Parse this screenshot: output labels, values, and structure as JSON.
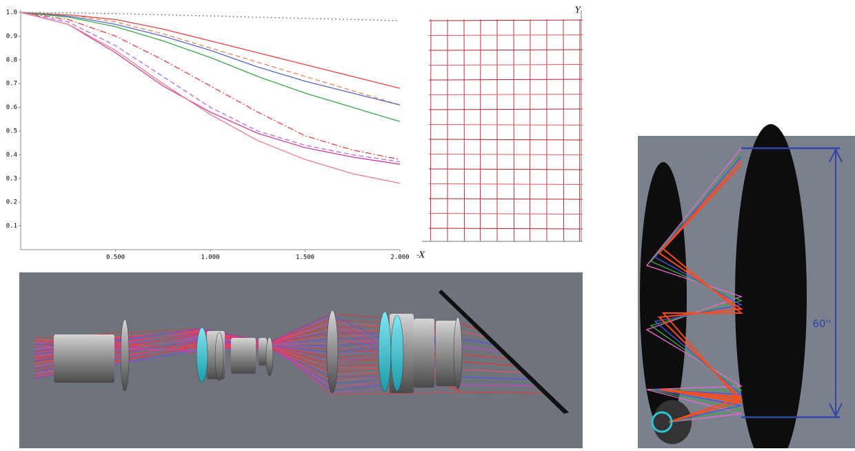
{
  "chart_data": {
    "type": "line",
    "x": [
      0,
      0.25,
      0.5,
      0.75,
      1.0,
      1.25,
      1.5,
      1.75,
      2.0
    ],
    "xlim": [
      0,
      2.0
    ],
    "xticks": [
      {
        "value": 0.5,
        "label": "0.500"
      },
      {
        "value": 1.0,
        "label": "1.000"
      },
      {
        "value": 1.5,
        "label": "1.500"
      },
      {
        "value": 2.0,
        "label": "2.000"
      }
    ],
    "ylim": [
      0,
      1.0
    ],
    "yticks": [
      0.1,
      0.2,
      0.3,
      0.4,
      0.5,
      0.6,
      0.7,
      0.8,
      0.9,
      {
        "value": 1.0,
        "label": "1.0"
      }
    ],
    "grid": false,
    "series": [
      {
        "color": "#555555",
        "dash": "dotted",
        "values": [
          1,
          0.998,
          0.995,
          0.99,
          0.985,
          0.98,
          0.975,
          0.97,
          0.965
        ]
      },
      {
        "color": "#e8433f",
        "dash": "solid",
        "values": [
          1,
          0.99,
          0.97,
          0.93,
          0.88,
          0.83,
          0.78,
          0.73,
          0.68
        ]
      },
      {
        "color": "#e8855a",
        "dash": "dashed",
        "values": [
          1,
          0.99,
          0.96,
          0.91,
          0.85,
          0.79,
          0.73,
          0.67,
          0.61
        ]
      },
      {
        "color": "#5566cc",
        "dash": "solid",
        "values": [
          1,
          0.985,
          0.95,
          0.9,
          0.84,
          0.77,
          0.71,
          0.66,
          0.61
        ]
      },
      {
        "color": "#3aa845",
        "dash": "solid",
        "values": [
          1,
          0.98,
          0.94,
          0.88,
          0.81,
          0.73,
          0.66,
          0.6,
          0.54
        ]
      },
      {
        "color": "#e8433f",
        "dash": "dashdot",
        "values": [
          1,
          0.97,
          0.9,
          0.8,
          0.69,
          0.58,
          0.48,
          0.42,
          0.38
        ]
      },
      {
        "color": "#b86adf",
        "dash": "dashed",
        "values": [
          1,
          0.96,
          0.86,
          0.73,
          0.6,
          0.5,
          0.44,
          0.4,
          0.37
        ]
      },
      {
        "color": "#d0409a",
        "dash": "solid",
        "values": [
          1,
          0.95,
          0.83,
          0.69,
          0.58,
          0.49,
          0.43,
          0.39,
          0.36
        ]
      },
      {
        "color": "#f07a90",
        "dash": "solid",
        "values": [
          1,
          0.95,
          0.84,
          0.7,
          0.57,
          0.46,
          0.38,
          0.32,
          0.28
        ]
      }
    ]
  },
  "grid_plot": {
    "y_label": "Y",
    "x_label": "-X"
  },
  "ray_diagram": {
    "dimension_label": "60''"
  }
}
